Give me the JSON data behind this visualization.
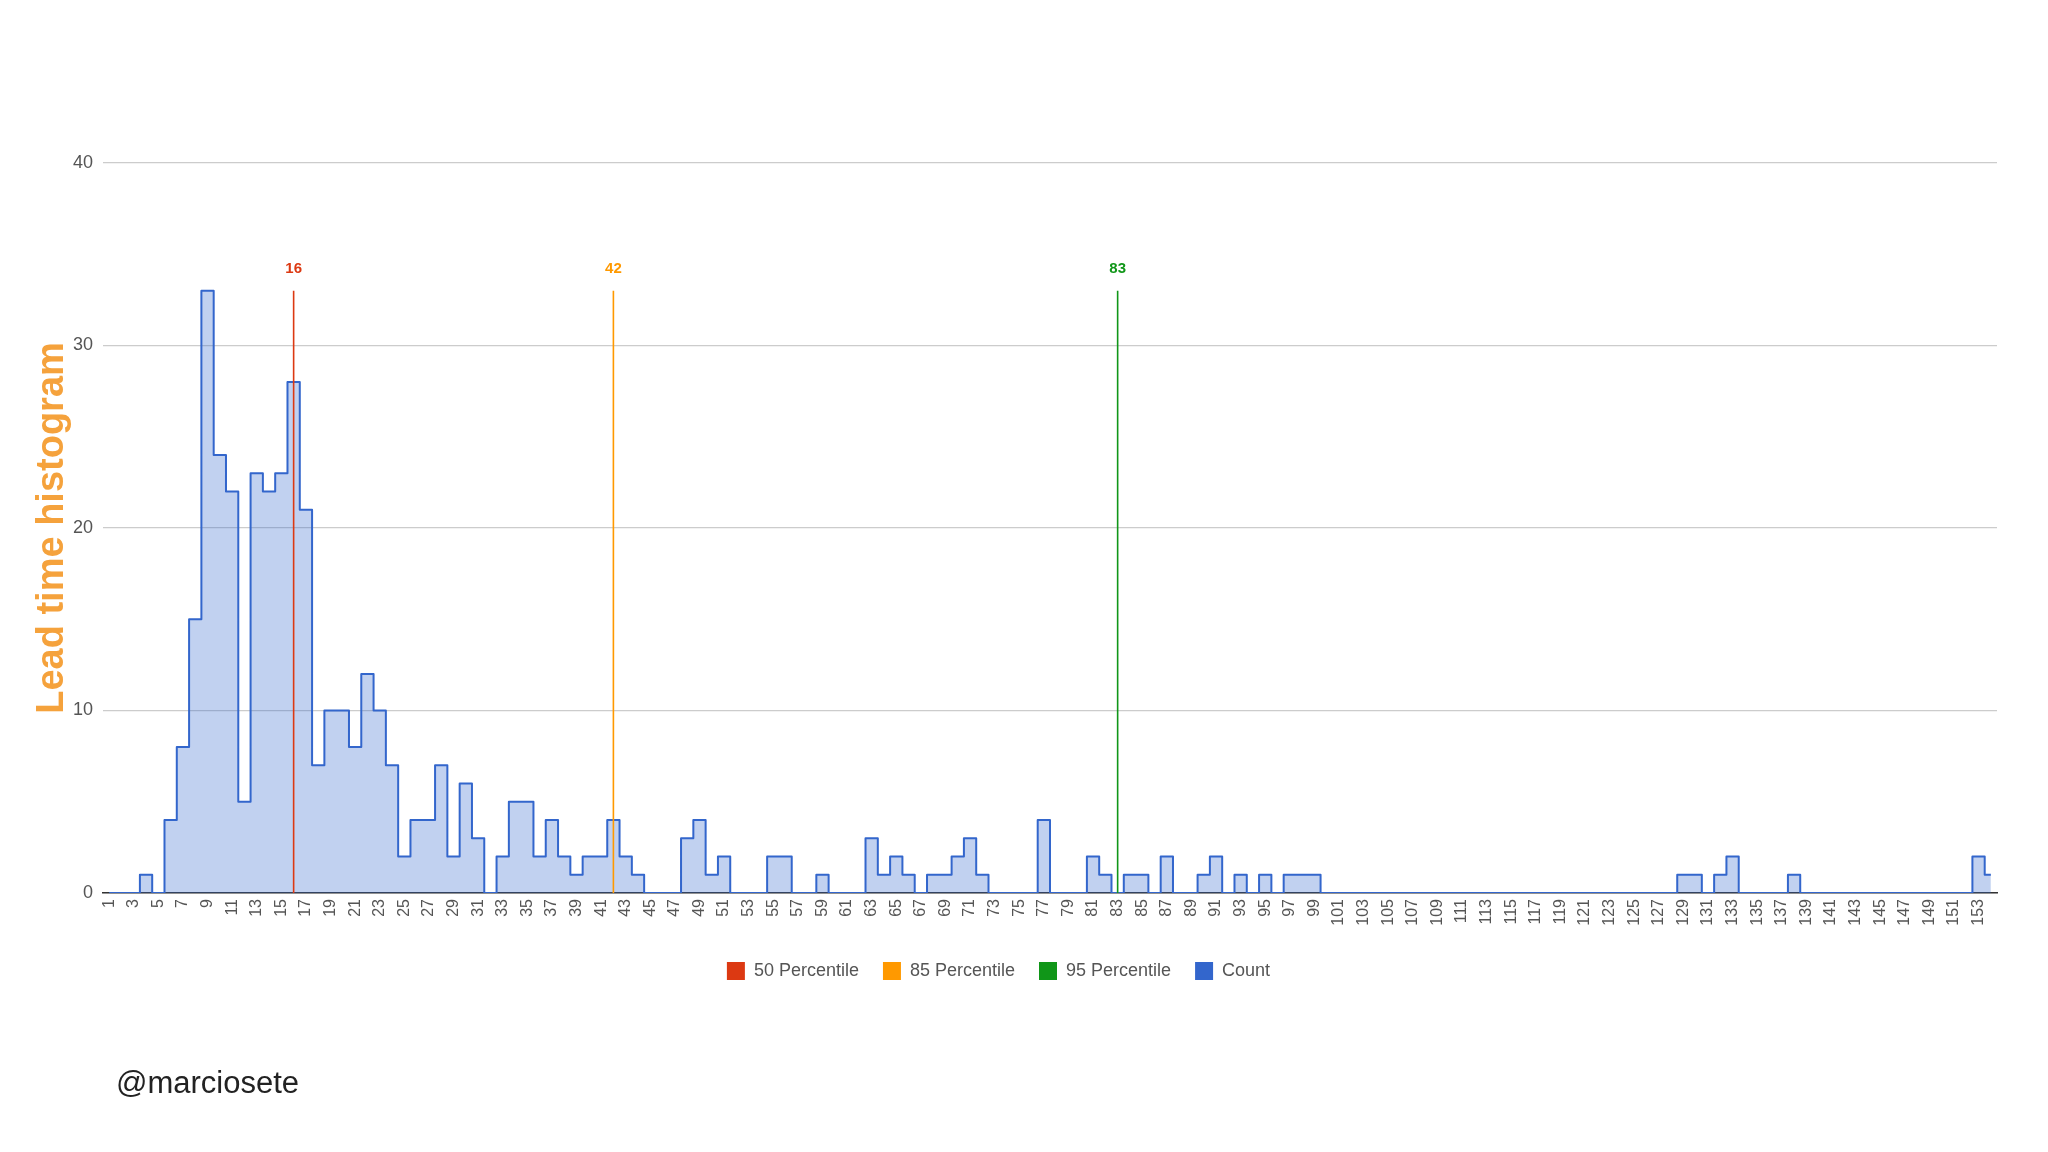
{
  "chart_data": {
    "type": "step",
    "ylabel": "Lead time histogram",
    "x": [
      1,
      2,
      3,
      4,
      5,
      6,
      7,
      8,
      9,
      10,
      11,
      12,
      13,
      14,
      15,
      16,
      17,
      18,
      19,
      20,
      21,
      22,
      23,
      24,
      25,
      26,
      27,
      28,
      29,
      30,
      31,
      32,
      33,
      34,
      35,
      36,
      37,
      38,
      39,
      40,
      41,
      42,
      43,
      44,
      45,
      46,
      47,
      48,
      49,
      50,
      51,
      52,
      53,
      54,
      55,
      56,
      57,
      58,
      59,
      60,
      61,
      62,
      63,
      64,
      65,
      66,
      67,
      68,
      69,
      70,
      71,
      72,
      73,
      74,
      75,
      76,
      77,
      78,
      79,
      80,
      81,
      82,
      83,
      84,
      85,
      86,
      87,
      88,
      89,
      90,
      91,
      92,
      93,
      94,
      95,
      96,
      97,
      98,
      99,
      100,
      101,
      102,
      103,
      104,
      105,
      106,
      107,
      108,
      109,
      110,
      111,
      112,
      113,
      114,
      115,
      116,
      117,
      118,
      119,
      120,
      121,
      122,
      123,
      124,
      125,
      126,
      127,
      128,
      129,
      130,
      131,
      132,
      133,
      134,
      135,
      136,
      137,
      138,
      139,
      140,
      141,
      142,
      143,
      144,
      145,
      146,
      147,
      148,
      149,
      150,
      151,
      152,
      153,
      154
    ],
    "series": [
      {
        "name": "50 Percentile",
        "type": "line",
        "color": "#dc3912",
        "x": [
          16,
          16
        ],
        "values": [
          0,
          33
        ]
      },
      {
        "name": "85 Percentile",
        "type": "line",
        "color": "#ff9900",
        "x": [
          42,
          42
        ],
        "values": [
          0,
          33
        ]
      },
      {
        "name": "95 Percentile",
        "type": "line",
        "color": "#109618",
        "x": [
          83,
          83
        ],
        "values": [
          0,
          33
        ]
      },
      {
        "name": "Count",
        "color": "#3366cc",
        "values": [
          0,
          0,
          0,
          1,
          0,
          4,
          8,
          15,
          33,
          24,
          22,
          5,
          23,
          22,
          23,
          28,
          21,
          7,
          10,
          10,
          8,
          12,
          10,
          7,
          2,
          4,
          4,
          7,
          2,
          6,
          3,
          0,
          2,
          5,
          5,
          2,
          4,
          2,
          1,
          2,
          2,
          4,
          2,
          1,
          0,
          0,
          0,
          3,
          4,
          1,
          2,
          0,
          0,
          0,
          2,
          2,
          0,
          0,
          1,
          0,
          0,
          0,
          3,
          1,
          2,
          1,
          0,
          1,
          1,
          2,
          3,
          1,
          0,
          0,
          0,
          0,
          4,
          0,
          0,
          0,
          2,
          1,
          0,
          1,
          1,
          0,
          2,
          0,
          0,
          1,
          2,
          0,
          1,
          0,
          1,
          0,
          1,
          1,
          1,
          0,
          0,
          0,
          0,
          0,
          0,
          0,
          0,
          0,
          0,
          0,
          0,
          0,
          0,
          0,
          0,
          0,
          0,
          0,
          0,
          0,
          0,
          0,
          0,
          0,
          0,
          0,
          0,
          0,
          1,
          1,
          0,
          1,
          2,
          0,
          0,
          0,
          0,
          1,
          0,
          0,
          0,
          0,
          0,
          0,
          0,
          0,
          0,
          0,
          0,
          0,
          0,
          0,
          2,
          1
        ]
      }
    ],
    "xlim": [
      0.5,
      154.5
    ],
    "xticks": [
      1,
      3,
      5,
      7,
      9,
      11,
      13,
      15,
      17,
      19,
      21,
      23,
      25,
      27,
      29,
      31,
      33,
      35,
      37,
      39,
      41,
      43,
      45,
      47,
      49,
      51,
      53,
      55,
      57,
      59,
      61,
      63,
      65,
      67,
      69,
      71,
      73,
      75,
      77,
      79,
      81,
      83,
      85,
      87,
      89,
      91,
      93,
      95,
      97,
      99,
      101,
      103,
      105,
      107,
      109,
      111,
      113,
      115,
      117,
      119,
      121,
      123,
      125,
      127,
      129,
      131,
      133,
      135,
      137,
      139,
      141,
      143,
      145,
      147,
      149,
      151,
      153
    ],
    "ylim": [
      0,
      40
    ],
    "yticks": [
      0,
      10,
      20,
      30,
      40
    ],
    "grid": "y",
    "legend": "bottom",
    "annotations": [
      {
        "text": "16",
        "x": 16,
        "y": 33
      },
      {
        "text": "42",
        "x": 42,
        "y": 33
      },
      {
        "text": "83",
        "x": 83,
        "y": 33
      },
      "@marciosete"
    ]
  }
}
